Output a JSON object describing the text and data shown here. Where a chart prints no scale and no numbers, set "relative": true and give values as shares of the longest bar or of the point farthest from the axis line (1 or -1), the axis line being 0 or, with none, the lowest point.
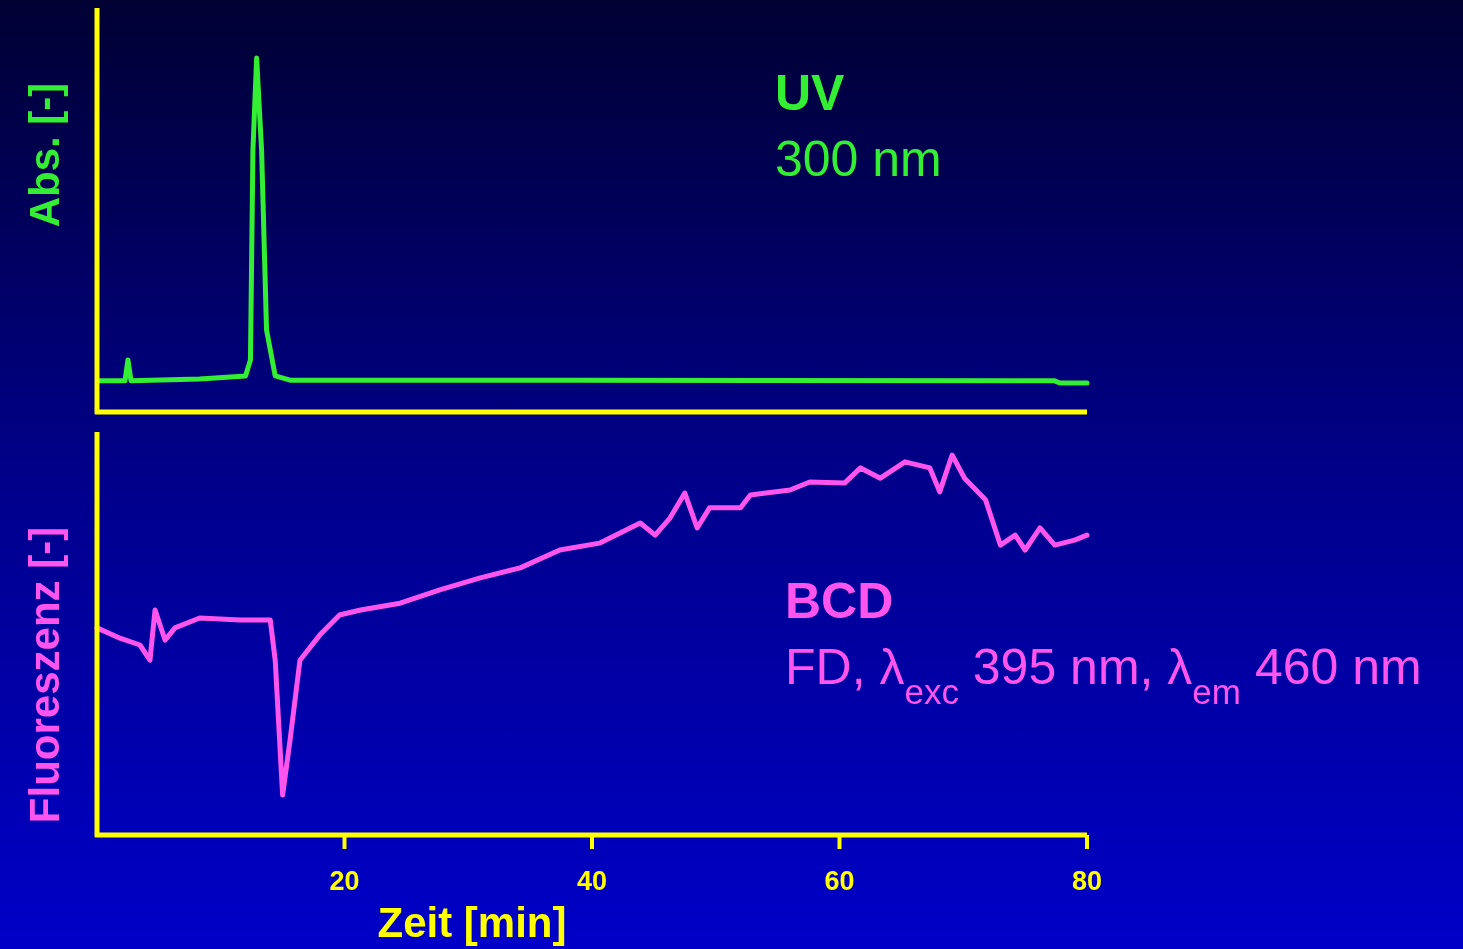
{
  "chart_data": [
    {
      "type": "line",
      "relative": true,
      "ylabel": "Abs. [-]",
      "xlim": [
        0,
        80
      ],
      "tick_labels": false,
      "line_style": "solid",
      "annotations": [
        "UV",
        "300 nm"
      ],
      "series": [
        {
          "color": "#33ee33",
          "x": [
            0.24,
            2.26,
            2.5,
            2.75,
            8.3,
            12.0,
            12.4,
            12.6,
            12.9,
            13.3,
            13.7,
            14.4,
            15.6,
            39.0,
            77.4,
            77.8,
            80
          ],
          "values": [
            0.088,
            0.088,
            0.147,
            0.088,
            0.093,
            0.102,
            0.147,
            0.74,
            1,
            0.74,
            0.232,
            0.102,
            0.09,
            0.09,
            0.088,
            0.082,
            0.082
          ]
        }
      ]
    },
    {
      "type": "line",
      "relative": true,
      "ylabel": "Fluoreszenz [-]",
      "xlabel": "Zeit [min]",
      "xlim": [
        0,
        80
      ],
      "xticks": [
        20,
        40,
        60,
        80
      ],
      "tick_labels": "x",
      "line_style": "solid",
      "annotations": [
        "BCD",
        "FD, λ$_{exc}$ 395 nm, λ$_{em}$ 460 nm"
      ],
      "series": [
        {
          "color": "#ff55ee",
          "x": [
            0,
            1.86,
            3.47,
            4.28,
            4.69,
            5.5,
            6.3,
            8.3,
            11.6,
            14.0,
            14.4,
            15.0,
            15.6,
            16.4,
            18.0,
            19.6,
            21.3,
            24.5,
            27.7,
            30.9,
            34.2,
            37.4,
            40.6,
            43.9,
            45.1,
            46.3,
            47.5,
            48.5,
            49.5,
            52.0,
            52.8,
            56.0,
            57.6,
            60.4,
            61.7,
            63.3,
            65.3,
            67.3,
            68.1,
            69.1,
            70.1,
            71.8,
            73.0,
            74.2,
            75.0,
            76.2,
            77.4,
            79.0,
            80
          ],
          "values": [
            0.545,
            0.518,
            0.5,
            0.46,
            0.592,
            0.513,
            0.545,
            0.571,
            0.566,
            0.566,
            0.46,
            0.105,
            0.25,
            0.46,
            0.526,
            0.579,
            0.592,
            0.61,
            0.645,
            0.676,
            0.703,
            0.75,
            0.768,
            0.821,
            0.789,
            0.834,
            0.9,
            0.808,
            0.861,
            0.861,
            0.895,
            0.908,
            0.929,
            0.926,
            0.966,
            0.939,
            0.982,
            0.966,
            0.903,
            1.0,
            0.939,
            0.882,
            0.763,
            0.789,
            0.75,
            0.808,
            0.763,
            0.776,
            0.789
          ]
        }
      ]
    }
  ]
}
